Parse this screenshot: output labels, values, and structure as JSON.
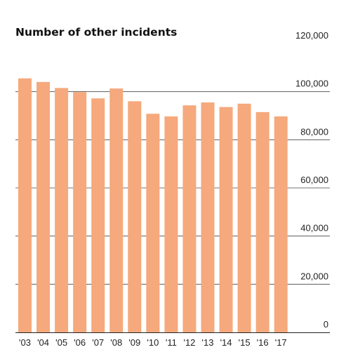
{
  "chart_data": {
    "type": "bar",
    "title": "Number of other incidents",
    "xlabel": "",
    "ylabel": "",
    "categories": [
      "'03",
      "'04",
      "'05",
      "'06",
      "'07",
      "'08",
      "'09",
      "'10",
      "'11",
      "'12",
      "'13",
      "'14",
      "'15",
      "'16",
      "'17"
    ],
    "values": [
      105500,
      104000,
      101500,
      99800,
      97200,
      101300,
      96000,
      90800,
      89700,
      94300,
      95500,
      93600,
      95000,
      91500,
      89700
    ],
    "ylim": [
      0,
      120000
    ],
    "yticks": [
      0,
      20000,
      40000,
      60000,
      80000,
      100000,
      120000
    ],
    "ytick_labels": [
      "0",
      "20,000",
      "40,000",
      "60,000",
      "80,000",
      "100,000",
      "120,000"
    ],
    "grid": true,
    "bar_color": "#f5a97c",
    "grid_color": "#444444"
  }
}
